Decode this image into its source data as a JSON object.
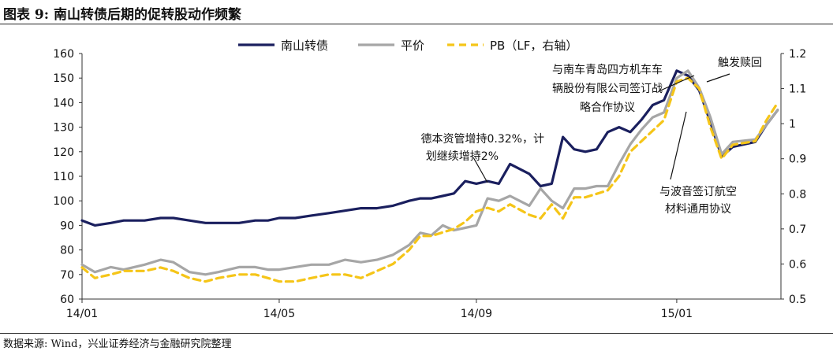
{
  "header": {
    "title": "图表 9:  南山转债后期的促转股动作频繁"
  },
  "footer": {
    "source": "数据来源:  Wind，兴业证券经济与金融研究院整理"
  },
  "chart_data": {
    "type": "line",
    "title": "图表 9:  南山转债后期的促转股动作频繁",
    "x": [
      "2014-01-02",
      "2014-01-10",
      "2014-01-20",
      "2014-01-28",
      "2014-02-10",
      "2014-02-20",
      "2014-02-28",
      "2014-03-10",
      "2014-03-20",
      "2014-03-28",
      "2014-04-10",
      "2014-04-20",
      "2014-04-28",
      "2014-05-05",
      "2014-05-15",
      "2014-05-25",
      "2014-06-05",
      "2014-06-15",
      "2014-06-25",
      "2014-07-05",
      "2014-07-15",
      "2014-07-25",
      "2014-08-01",
      "2014-08-08",
      "2014-08-15",
      "2014-08-22",
      "2014-08-29",
      "2014-09-05",
      "2014-09-12",
      "2014-09-19",
      "2014-09-26",
      "2014-10-08",
      "2014-10-15",
      "2014-10-22",
      "2014-10-29",
      "2014-11-05",
      "2014-11-12",
      "2014-11-19",
      "2014-11-26",
      "2014-12-03",
      "2014-12-10",
      "2014-12-17",
      "2014-12-24",
      "2014-12-31",
      "2015-01-08",
      "2015-01-15",
      "2015-01-22",
      "2015-01-29",
      "2015-02-05",
      "2015-02-12",
      "2015-02-26",
      "2015-03-05",
      "2015-03-12"
    ],
    "series": [
      {
        "name": "南山转债",
        "axis": "left",
        "color": "#1a1f5e",
        "values": [
          92,
          90,
          91,
          92,
          92,
          93,
          93,
          92,
          91,
          91,
          91,
          92,
          92,
          93,
          93,
          94,
          95,
          96,
          97,
          97,
          98,
          100,
          101,
          101,
          102,
          103,
          108,
          107,
          108,
          107,
          115,
          111,
          106,
          107,
          126,
          121,
          120,
          121,
          128,
          130,
          128,
          133,
          139,
          141,
          153,
          151,
          145,
          132,
          118,
          122,
          124,
          131,
          137
        ]
      },
      {
        "name": "平价",
        "axis": "left",
        "color": "#a6a6a6",
        "values": [
          74,
          71,
          73,
          72,
          74,
          76,
          75,
          71,
          70,
          71,
          73,
          73,
          72,
          72,
          73,
          74,
          74,
          76,
          75,
          76,
          78,
          82,
          87,
          86,
          90,
          88,
          89,
          90,
          101,
          100,
          102,
          98,
          105,
          100,
          97,
          105,
          105,
          106,
          106,
          115,
          123,
          129,
          134,
          136,
          150,
          153,
          146,
          134,
          119,
          124,
          125,
          131,
          137
        ]
      },
      {
        "name": "PB（LF，右轴）",
        "axis": "right",
        "color": "#f5c518",
        "values": [
          0.59,
          0.56,
          0.57,
          0.58,
          0.58,
          0.59,
          0.58,
          0.56,
          0.55,
          0.56,
          0.57,
          0.57,
          0.56,
          0.55,
          0.55,
          0.56,
          0.57,
          0.57,
          0.56,
          0.58,
          0.6,
          0.64,
          0.68,
          0.68,
          0.69,
          0.7,
          0.72,
          0.75,
          0.76,
          0.75,
          0.77,
          0.74,
          0.73,
          0.77,
          0.73,
          0.79,
          0.79,
          0.8,
          0.81,
          0.85,
          0.92,
          0.95,
          0.98,
          1.01,
          1.12,
          1.13,
          1.1,
          0.99,
          0.9,
          0.94,
          0.95,
          1.01,
          1.06
        ]
      }
    ],
    "y_left": {
      "min": 60,
      "max": 160,
      "ticks": [
        60,
        70,
        80,
        90,
        100,
        110,
        120,
        130,
        140,
        150,
        160
      ]
    },
    "y_right": {
      "min": 0.5,
      "max": 1.2,
      "ticks": [
        "0.5",
        "0.6",
        "0.7",
        "0.8",
        "0.9",
        "1",
        "1.1",
        "1.2"
      ]
    },
    "x_ticks": [
      {
        "label": "14/01",
        "date": "2014-01-02"
      },
      {
        "label": "14/05",
        "date": "2014-05-05"
      },
      {
        "label": "14/09",
        "date": "2014-09-05"
      },
      {
        "label": "15/01",
        "date": "2015-01-08"
      }
    ],
    "legend": {
      "position": "top-center",
      "items": [
        "南山转债",
        "平价",
        "PB（LF，右轴）"
      ]
    },
    "annotations": [
      {
        "lines": [
          "德本资管增持0.32%，计",
          "划继续增持2%"
        ],
        "date": "2014-10-08",
        "value": 111
      },
      {
        "lines": [
          "与南车青岛四方机车车",
          "辆股份有限公司签订战",
          "略合作协议"
        ],
        "date": "2015-01-08",
        "value": 153
      },
      {
        "lines": [
          "触发赎回"
        ],
        "date": "2015-01-15",
        "value": 151
      },
      {
        "lines": [
          "与波音签订航空",
          "材料通用协议"
        ],
        "date": "2014-12-31",
        "value": 136
      }
    ]
  }
}
